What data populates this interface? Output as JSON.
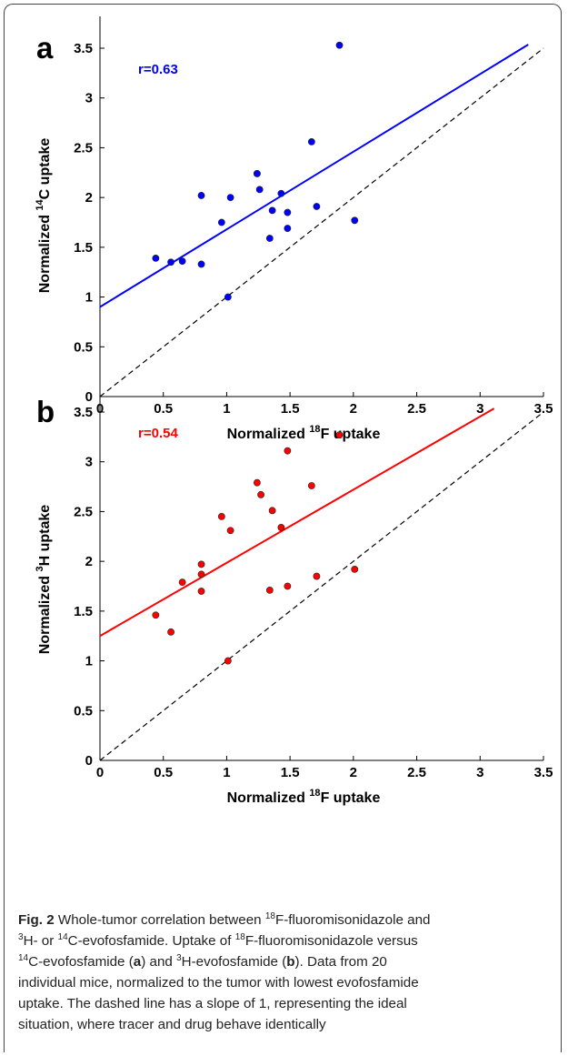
{
  "figure": {
    "panels": [
      {
        "letter": "a",
        "r_label": "r=0.63",
        "xlabel_main": "Normalized ",
        "xlabel_sup": "18",
        "xlabel_rest": "F uptake",
        "ylabel_main": "Normalized ",
        "ylabel_sup": "14",
        "ylabel_rest": "C uptake",
        "color": "#0000ff"
      },
      {
        "letter": "b",
        "r_label": "r=0.54",
        "xlabel_main": "Normalized ",
        "xlabel_sup": "18",
        "xlabel_rest": "F uptake",
        "ylabel_main": "Normalized ",
        "ylabel_sup": "3",
        "ylabel_rest": "H uptake",
        "color": "#ff0000"
      }
    ],
    "ticks": [
      "0",
      "0.5",
      "1",
      "1.5",
      "2",
      "2.5",
      "3",
      "3.5"
    ]
  },
  "caption": {
    "fig_label": "Fig. 2",
    "line1_a": " Whole-tumor correlation between ",
    "line1_sup": "18",
    "line1_b": "F-fluoromisonidazole and",
    "line2_sup1": "3",
    "line2_a": "H- or ",
    "line2_sup2": "14",
    "line2_b": "C-evofosfamide. Uptake of ",
    "line2_sup3": "18",
    "line2_c": "F-fluoromisonidazole versus",
    "line3_sup1": "14",
    "line3_a": "C-evofosfamide (",
    "line3_a_lbl": "a",
    "line3_b": ") and ",
    "line3_sup2": "3",
    "line3_c": "H-evofosfamide (",
    "line3_b_lbl": "b",
    "line3_d": "). Data from 20",
    "line4": "individual mice, normalized to the tumor with lowest evofosfamide",
    "line5": "uptake. The dashed line has a slope of 1, representing the ideal",
    "line6": "situation, where tracer and drug behave identically"
  },
  "chart_data": [
    {
      "type": "scatter",
      "panel": "a",
      "title": "",
      "xlabel": "Normalized 18F uptake",
      "ylabel": "Normalized 14C uptake",
      "xlim": [
        0,
        3.5
      ],
      "ylim": [
        0,
        3.5
      ],
      "annotation": "r=0.63",
      "series": [
        {
          "color": "#0000ff",
          "x": [
            0.44,
            0.56,
            0.65,
            0.8,
            0.8,
            0.96,
            1.01,
            1.03,
            1.24,
            1.26,
            1.34,
            1.36,
            1.43,
            1.48,
            1.48,
            1.67,
            1.71,
            1.89,
            2.01,
            1.24
          ],
          "y": [
            1.39,
            1.35,
            1.36,
            1.33,
            2.02,
            1.75,
            1.0,
            2.0,
            2.24,
            2.08,
            1.59,
            1.87,
            2.04,
            1.69,
            1.85,
            2.56,
            1.91,
            3.53,
            1.77,
            2.24
          ]
        }
      ],
      "regression_line": {
        "intercept": 0.9,
        "slope": 0.78,
        "x_range": [
          0,
          3.38
        ]
      },
      "identity_line": {
        "slope": 1,
        "style": "dashed"
      }
    },
    {
      "type": "scatter",
      "panel": "b",
      "title": "",
      "xlabel": "Normalized 18F uptake",
      "ylabel": "Normalized 3H uptake",
      "xlim": [
        0,
        3.5
      ],
      "ylim": [
        0,
        3.5
      ],
      "annotation": "r=0.54",
      "series": [
        {
          "color": "#ff0000",
          "x": [
            0.44,
            0.56,
            0.65,
            0.8,
            0.8,
            0.8,
            0.96,
            1.01,
            1.03,
            1.24,
            1.27,
            1.34,
            1.36,
            1.43,
            1.48,
            1.48,
            1.67,
            1.71,
            1.89,
            2.01
          ],
          "y": [
            1.46,
            1.29,
            1.79,
            1.97,
            1.87,
            1.7,
            2.45,
            1.0,
            2.31,
            2.79,
            2.67,
            1.71,
            2.51,
            2.34,
            1.75,
            3.11,
            2.76,
            1.85,
            3.27,
            1.92
          ]
        }
      ],
      "regression_line": {
        "intercept": 1.25,
        "slope": 0.735,
        "x_range": [
          0,
          3.11
        ]
      },
      "identity_line": {
        "slope": 1,
        "style": "dashed"
      }
    }
  ]
}
